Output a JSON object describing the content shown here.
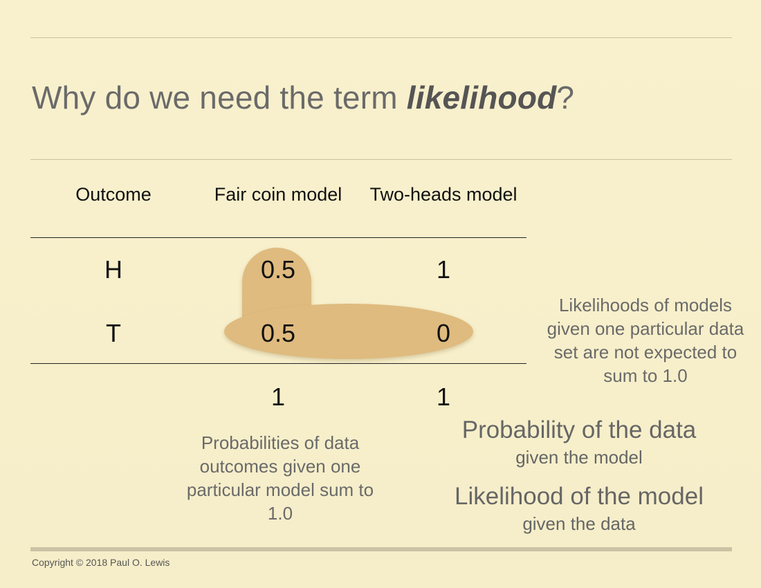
{
  "slide": {
    "title_prefix": "Why do we need the term ",
    "title_emphasis": "likelihood",
    "title_suffix": "?"
  },
  "table": {
    "headers": [
      "Outcome",
      "Fair coin model",
      "Two-heads model"
    ],
    "rows": [
      {
        "outcome": "H",
        "fair": "0.5",
        "two_heads": "1"
      },
      {
        "outcome": "T",
        "fair": "0.5",
        "two_heads": "0"
      }
    ],
    "totals": {
      "fair": "1",
      "two_heads": "1"
    }
  },
  "notes": {
    "probabilities_sum": "Probabilities of data outcomes given one particular model sum to 1.0",
    "likelihoods_sum": "Likelihoods of models given one particular data set are not expected to sum to 1.0"
  },
  "definitions": {
    "probability_title": "Probability of the data",
    "probability_subtitle": "given the model",
    "likelihood_title": "Likelihood of the model",
    "likelihood_subtitle": "given the data"
  },
  "footer": {
    "copyright": "Copyright © 2018 Paul O. Lewis"
  },
  "colors": {
    "background": "#f7efc9",
    "highlight": "#dfbb7f",
    "text_gray": "#6a6a6a"
  }
}
